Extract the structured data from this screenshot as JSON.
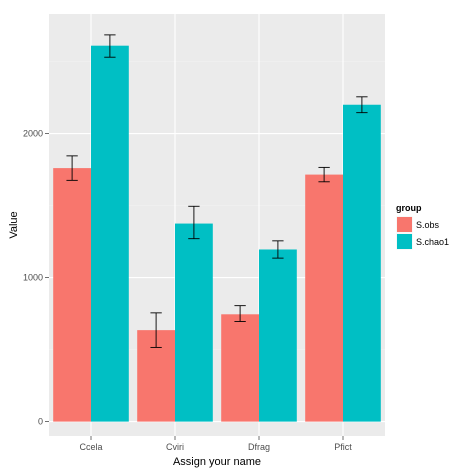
{
  "chart_data": {
    "type": "bar",
    "title": "",
    "xlabel": "Assign your name",
    "ylabel": "Value",
    "categories": [
      "Ccela",
      "Cviri",
      "Dfrag",
      "Pfict"
    ],
    "series": [
      {
        "name": "S.obs",
        "values": [
          1760,
          635,
          745,
          1715
        ],
        "err_low": [
          1675,
          515,
          695,
          1665
        ],
        "err_high": [
          1845,
          755,
          805,
          1765
        ],
        "color": "#F8766D"
      },
      {
        "name": "S.chao1",
        "values": [
          2610,
          1375,
          1195,
          2200
        ],
        "err_low": [
          2530,
          1270,
          1135,
          2145
        ],
        "err_high": [
          2685,
          1495,
          1255,
          2255
        ],
        "color": "#00BFC4"
      }
    ],
    "ylim": [
      -100,
      2830
    ],
    "yticks": [
      0,
      1000,
      2000
    ],
    "ytick_labels": [
      "0",
      "1000",
      "2000"
    ],
    "grid": true,
    "panel_background": "#EBEBEB",
    "legend": {
      "title": "group",
      "position": "right",
      "items": [
        "S.obs",
        "S.chao1"
      ]
    }
  }
}
